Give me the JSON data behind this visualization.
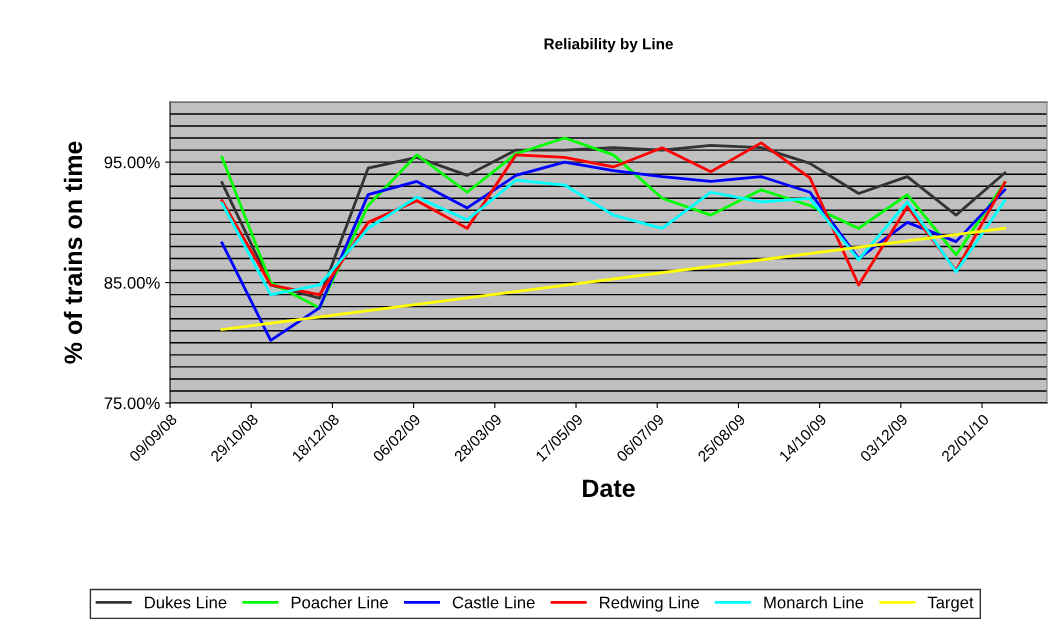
{
  "chart_data": {
    "type": "line",
    "title": "Reliability by Line",
    "xlabel": "Date",
    "ylabel": "% of trains on time",
    "x": [
      "2008-10-11",
      "2008-11-10",
      "2008-12-10",
      "2009-01-09",
      "2009-02-08",
      "2009-03-11",
      "2009-04-10",
      "2009-05-10",
      "2009-06-09",
      "2009-07-09",
      "2009-08-08",
      "2009-09-08",
      "2009-10-08",
      "2009-11-07",
      "2009-12-07",
      "2010-01-06",
      "2010-02-05"
    ],
    "series": [
      {
        "name": "Dukes Line",
        "color": "#333333",
        "values": [
          93.3,
          84.8,
          83.7,
          94.5,
          95.4,
          93.9,
          96.0,
          96.0,
          96.2,
          96.0,
          96.4,
          96.2,
          94.9,
          92.4,
          93.8,
          90.6,
          94.1
        ]
      },
      {
        "name": "Poacher Line",
        "color": "#00ff00",
        "values": [
          95.4,
          85.0,
          82.9,
          91.4,
          95.6,
          92.5,
          95.7,
          97.0,
          95.6,
          92.0,
          90.6,
          92.7,
          91.4,
          89.5,
          92.3,
          87.3,
          93.3
        ]
      },
      {
        "name": "Castle Line",
        "color": "#0000ff",
        "values": [
          88.3,
          80.2,
          82.9,
          92.3,
          93.4,
          91.2,
          93.9,
          95.0,
          94.3,
          93.8,
          93.4,
          93.8,
          92.5,
          87.0,
          90.0,
          88.4,
          92.7
        ]
      },
      {
        "name": "Redwing Line",
        "color": "#ff0000",
        "values": [
          91.8,
          84.8,
          84.0,
          90.0,
          91.8,
          89.5,
          95.6,
          95.4,
          94.6,
          96.2,
          94.2,
          96.6,
          93.7,
          84.8,
          91.3,
          86.0,
          93.3
        ]
      },
      {
        "name": "Monarch Line",
        "color": "#00ffff",
        "values": [
          91.6,
          84.0,
          84.8,
          89.5,
          92.1,
          90.2,
          93.5,
          93.1,
          90.6,
          89.5,
          92.5,
          91.7,
          92.0,
          86.9,
          91.7,
          85.9,
          91.8
        ]
      },
      {
        "name": "Target",
        "color": "#ffff00",
        "x": [
          "2008-10-11",
          "2010-02-05"
        ],
        "values": [
          81.1,
          89.5
        ]
      }
    ],
    "xlim": [
      "2008-09-09",
      "2010-03-03"
    ],
    "xticks": [
      {
        "value": "2008-09-09",
        "label": "09/09/08"
      },
      {
        "value": "2008-10-29",
        "label": "29/10/08"
      },
      {
        "value": "2008-12-18",
        "label": "18/12/08"
      },
      {
        "value": "2009-02-06",
        "label": "06/02/09"
      },
      {
        "value": "2009-03-28",
        "label": "28/03/09"
      },
      {
        "value": "2009-05-17",
        "label": "17/05/09"
      },
      {
        "value": "2009-07-06",
        "label": "06/07/09"
      },
      {
        "value": "2009-08-25",
        "label": "25/08/09"
      },
      {
        "value": "2009-10-14",
        "label": "14/10/09"
      },
      {
        "value": "2009-12-03",
        "label": "03/12/09"
      },
      {
        "value": "2010-01-22",
        "label": "22/01/10"
      }
    ],
    "ylim": [
      75,
      100
    ],
    "yticks": [
      {
        "value": 75,
        "label": "75.00%"
      },
      {
        "value": 76,
        "label": null
      },
      {
        "value": 77,
        "label": null
      },
      {
        "value": 78,
        "label": null
      },
      {
        "value": 79,
        "label": null
      },
      {
        "value": 80,
        "label": null
      },
      {
        "value": 81,
        "label": null
      },
      {
        "value": 82,
        "label": null
      },
      {
        "value": 83,
        "label": null
      },
      {
        "value": 84,
        "label": null
      },
      {
        "value": 85,
        "label": "85.00%"
      },
      {
        "value": 86,
        "label": null
      },
      {
        "value": 87,
        "label": null
      },
      {
        "value": 88,
        "label": null
      },
      {
        "value": 89,
        "label": null
      },
      {
        "value": 90,
        "label": null
      },
      {
        "value": 91,
        "label": null
      },
      {
        "value": 92,
        "label": null
      },
      {
        "value": 93,
        "label": null
      },
      {
        "value": 94,
        "label": null
      },
      {
        "value": 95,
        "label": "95.00%"
      },
      {
        "value": 96,
        "label": null
      },
      {
        "value": 97,
        "label": null
      },
      {
        "value": 98,
        "label": null
      },
      {
        "value": 99,
        "label": null
      },
      {
        "value": 100,
        "label": null
      }
    ],
    "grid": "y",
    "legend": "bottom",
    "marker": "none",
    "line_style": "solid"
  }
}
